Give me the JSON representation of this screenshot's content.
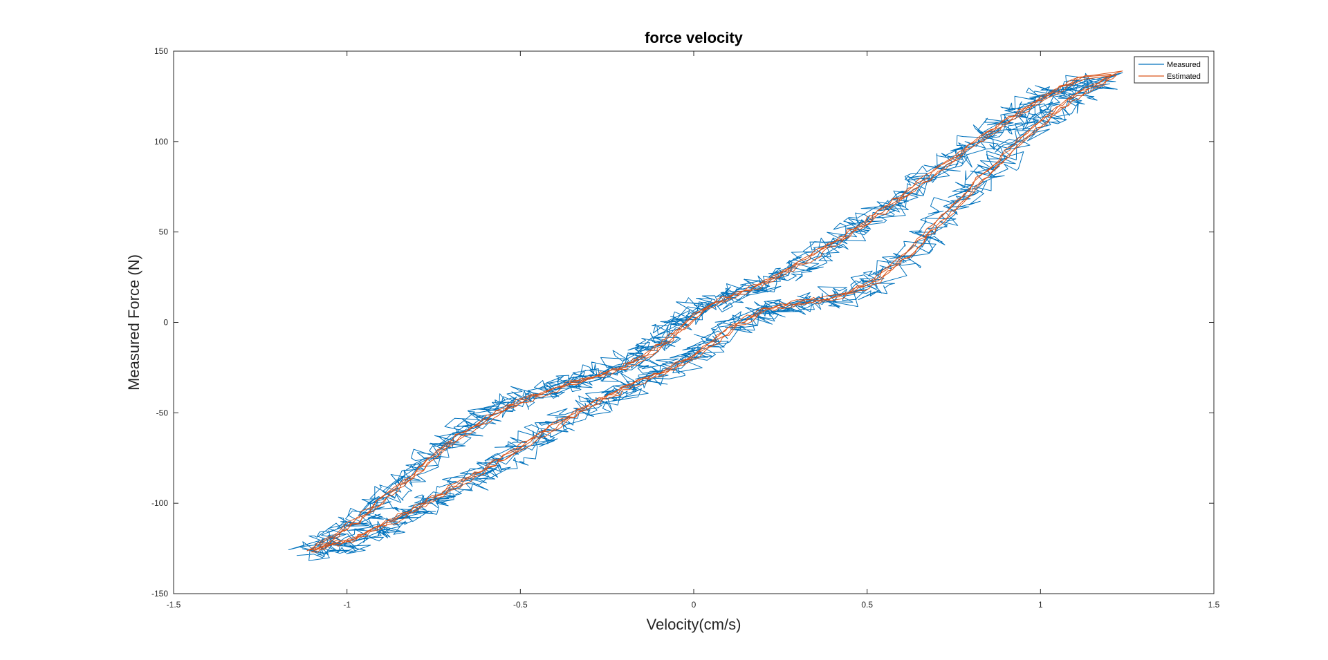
{
  "chart_data": {
    "type": "line",
    "title": "force velocity",
    "xlabel": "Velocity(cm/s)",
    "ylabel": "Measured Force (N)",
    "xlim": [
      -1.5,
      1.5
    ],
    "ylim": [
      -150,
      150
    ],
    "xticks": [
      -1.5,
      -1,
      -0.5,
      0,
      0.5,
      1,
      1.5
    ],
    "xtick_labels": [
      "-1.5",
      "-1",
      "-0.5",
      "0",
      "0.5",
      "1",
      "1.5"
    ],
    "yticks": [
      -150,
      -100,
      -50,
      0,
      50,
      100,
      150
    ],
    "ytick_labels": [
      "-150",
      "-100",
      "-50",
      "0",
      "50",
      "100",
      "150"
    ],
    "grid": false,
    "legend_position": "top-right",
    "series": [
      {
        "name": "Measured",
        "color": "#0072BD",
        "style": "noisy hysteresis loops",
        "upper_branch": [
          [
            -1.05,
            -122
          ],
          [
            -0.95,
            -108
          ],
          [
            -0.85,
            -92
          ],
          [
            -0.75,
            -75
          ],
          [
            -0.65,
            -60
          ],
          [
            -0.55,
            -48
          ],
          [
            -0.45,
            -40
          ],
          [
            -0.35,
            -34
          ],
          [
            -0.25,
            -28
          ],
          [
            -0.15,
            -20
          ],
          [
            -0.08,
            -8
          ],
          [
            0.0,
            6
          ],
          [
            0.1,
            12
          ],
          [
            0.2,
            20
          ],
          [
            0.3,
            30
          ],
          [
            0.4,
            42
          ],
          [
            0.5,
            55
          ],
          [
            0.6,
            68
          ],
          [
            0.7,
            82
          ],
          [
            0.8,
            97
          ],
          [
            0.9,
            110
          ],
          [
            1.0,
            122
          ],
          [
            1.1,
            131
          ]
        ],
        "lower_branch": [
          [
            1.2,
            134
          ],
          [
            1.1,
            124
          ],
          [
            1.0,
            110
          ],
          [
            0.9,
            92
          ],
          [
            0.8,
            72
          ],
          [
            0.7,
            52
          ],
          [
            0.6,
            32
          ],
          [
            0.5,
            18
          ],
          [
            0.4,
            12
          ],
          [
            0.3,
            9
          ],
          [
            0.2,
            5
          ],
          [
            0.1,
            -5
          ],
          [
            0.0,
            -20
          ],
          [
            -0.1,
            -30
          ],
          [
            -0.2,
            -38
          ],
          [
            -0.3,
            -48
          ],
          [
            -0.4,
            -60
          ],
          [
            -0.5,
            -72
          ],
          [
            -0.6,
            -84
          ],
          [
            -0.7,
            -95
          ],
          [
            -0.8,
            -105
          ],
          [
            -0.9,
            -116
          ],
          [
            -1.0,
            -124
          ],
          [
            -1.1,
            -128
          ]
        ]
      },
      {
        "name": "Estimated",
        "color": "#D95319",
        "style": "smoother hysteresis loops",
        "upper_branch": [
          [
            -1.1,
            -128
          ],
          [
            -1.0,
            -115
          ],
          [
            -0.9,
            -100
          ],
          [
            -0.8,
            -84
          ],
          [
            -0.7,
            -68
          ],
          [
            -0.6,
            -55
          ],
          [
            -0.5,
            -45
          ],
          [
            -0.4,
            -38
          ],
          [
            -0.3,
            -32
          ],
          [
            -0.2,
            -26
          ],
          [
            -0.12,
            -18
          ],
          [
            -0.05,
            -7
          ],
          [
            0.05,
            9
          ],
          [
            0.15,
            16
          ],
          [
            0.25,
            25
          ],
          [
            0.35,
            36
          ],
          [
            0.45,
            48
          ],
          [
            0.55,
            61
          ],
          [
            0.65,
            75
          ],
          [
            0.75,
            89
          ],
          [
            0.85,
            103
          ],
          [
            0.95,
            116
          ],
          [
            1.05,
            127
          ],
          [
            1.12,
            134
          ]
        ],
        "lower_branch": [
          [
            1.22,
            136
          ],
          [
            1.12,
            126
          ],
          [
            1.02,
            112
          ],
          [
            0.92,
            95
          ],
          [
            0.82,
            76
          ],
          [
            0.72,
            56
          ],
          [
            0.62,
            37
          ],
          [
            0.52,
            21
          ],
          [
            0.42,
            13
          ],
          [
            0.32,
            10
          ],
          [
            0.22,
            7
          ],
          [
            0.12,
            -3
          ],
          [
            0.02,
            -18
          ],
          [
            -0.08,
            -28
          ],
          [
            -0.18,
            -36
          ],
          [
            -0.28,
            -45
          ],
          [
            -0.38,
            -56
          ],
          [
            -0.48,
            -68
          ],
          [
            -0.58,
            -80
          ],
          [
            -0.68,
            -91
          ],
          [
            -0.78,
            -102
          ],
          [
            -0.88,
            -112
          ],
          [
            -0.98,
            -121
          ],
          [
            -1.08,
            -126
          ]
        ]
      }
    ]
  }
}
